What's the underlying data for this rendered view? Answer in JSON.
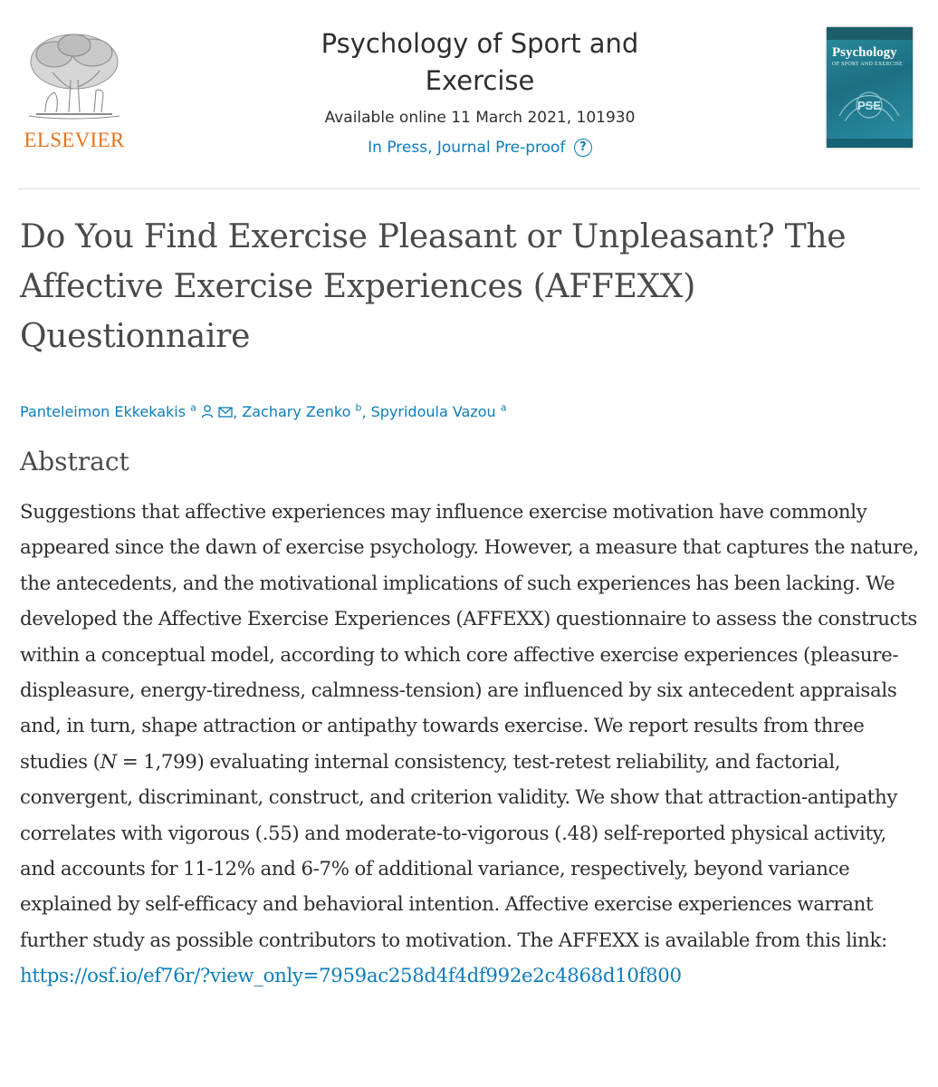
{
  "publisher": {
    "name": "ELSEVIER",
    "logo_icon": "elsevier-tree-logo"
  },
  "journal": {
    "title": "Psychology of Sport and Exercise",
    "available": "Available online 11 March 2021, 101930",
    "status": "In Press, Journal Pre-proof",
    "help_glyph": "?",
    "cover": {
      "title": "Psychology",
      "subtitle": "OF SPORT AND EXERCISE",
      "emblem": "PSE"
    }
  },
  "article": {
    "title": "Do You Find Exercise Pleasant or Unpleasant? The Affective Exercise Experiences (AFFEXX) Questionnaire",
    "authors": [
      {
        "name": "Panteleimon Ekkekakis",
        "affiliation": "a",
        "icons": [
          "person-icon",
          "mail-icon"
        ]
      },
      {
        "name": "Zachary Zenko",
        "affiliation": "b"
      },
      {
        "name": "Spyridoula Vazou",
        "affiliation": "a"
      }
    ],
    "separator": ", "
  },
  "abstract": {
    "heading": "Abstract",
    "text_1": "Suggestions that affective experiences may influence exercise motivation have commonly appeared since the dawn of exercise psychology. However, a measure that captures the nature, the antecedents, and the motivational implications of such experiences has been lacking. We developed the Affective Exercise Experiences (AFFEXX) questionnaire to assess the constructs within a conceptual model, according to which core affective exercise experiences (pleasure-displeasure, energy-tiredness, calmness-tension) are influenced by six antecedent appraisals and, in turn, shape attraction or antipathy towards exercise. We report results from three studies (",
    "n_symbol": "N",
    "text_2": " = 1,799) evaluating internal consistency, test-retest reliability, and factorial, convergent, discriminant, construct, and criterion validity. We show that attraction-antipathy correlates with vigorous (.55) and moderate-to-vigorous (.48) self-reported physical activity, and accounts for 11-12% and 6-7% of additional variance, respectively, beyond variance explained by self-efficacy and behavioral intention. Affective exercise experiences warrant further study as possible contributors to motivation. The AFFEXX is available from this link: ",
    "link": "https://osf.io/ef76r/?view_only=7959ac258d4f4df992e2c4868d10f800"
  },
  "colors": {
    "link": "#0c7dbb",
    "brand": "#e9711c",
    "text": "#2e2e2e",
    "heading": "#4a4a4a"
  }
}
